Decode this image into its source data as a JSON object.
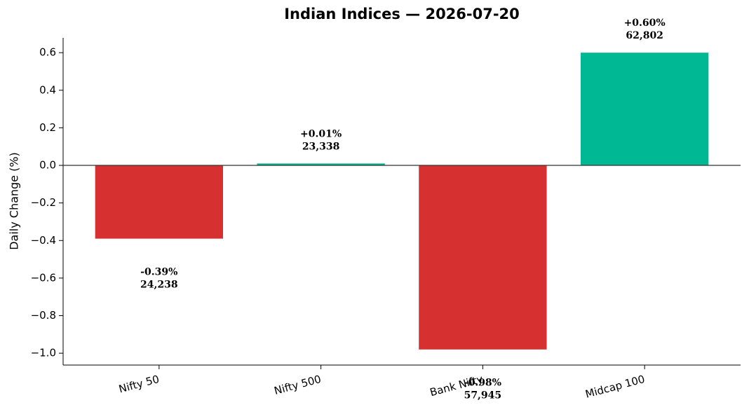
{
  "chart_data": {
    "type": "bar",
    "title": "Indian Indices — 2026-07-20",
    "y_label": "Daily Change (%)",
    "categories": [
      "Nifty 50",
      "Nifty 500",
      "Bank Nifty",
      "Midcap 100"
    ],
    "values": [
      -0.39,
      0.01,
      -0.98,
      0.6
    ],
    "value_labels": [
      "-0.39%",
      "+0.01%",
      "-0.98%",
      "+0.60%"
    ],
    "level_labels": [
      "24,238",
      "23,338",
      "57,945",
      "62,802"
    ],
    "colors": [
      "#d63031",
      "#00b894",
      "#d63031",
      "#00b894"
    ],
    "ylim": [
      -1.063,
      0.679
    ],
    "yticks": [
      {
        "value": -1.0,
        "label": "−1.0"
      },
      {
        "value": -0.8,
        "label": "−0.8"
      },
      {
        "value": -0.6,
        "label": "−0.6"
      },
      {
        "value": -0.4,
        "label": "−0.4"
      },
      {
        "value": -0.2,
        "label": "−0.2"
      },
      {
        "value": 0,
        "label": "0.0"
      },
      0.2,
      0.4,
      0.6
    ],
    "grid": false
  }
}
